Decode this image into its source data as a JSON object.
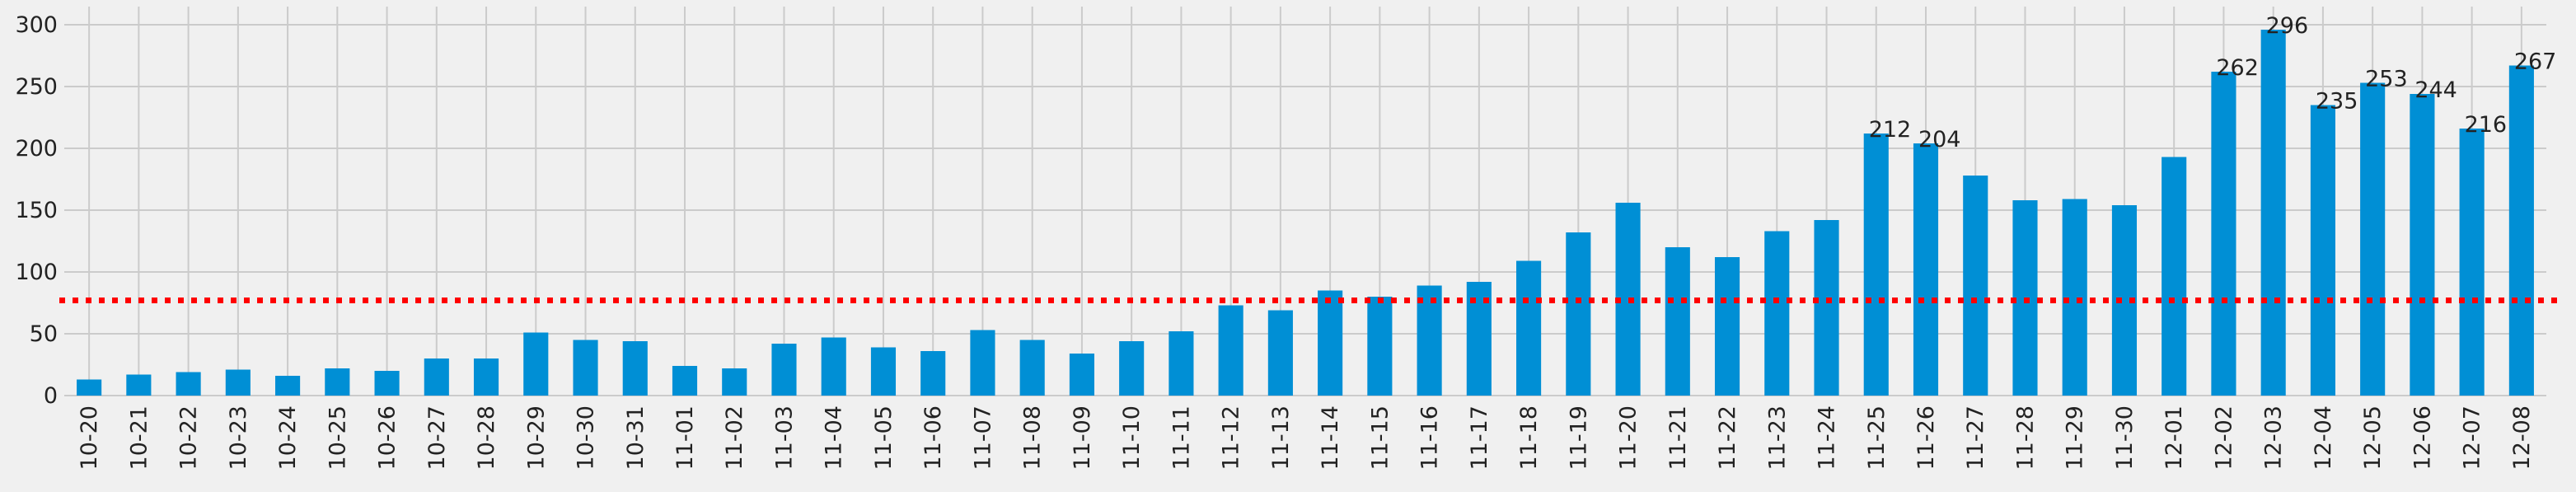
{
  "chart_data": {
    "type": "bar",
    "title": "",
    "xlabel": "",
    "ylabel": "",
    "categories": [
      "10-20",
      "10-21",
      "10-22",
      "10-23",
      "10-24",
      "10-25",
      "10-26",
      "10-27",
      "10-28",
      "10-29",
      "10-30",
      "10-31",
      "11-01",
      "11-02",
      "11-03",
      "11-04",
      "11-05",
      "11-06",
      "11-07",
      "11-08",
      "11-09",
      "11-10",
      "11-11",
      "11-12",
      "11-13",
      "11-14",
      "11-15",
      "11-16",
      "11-17",
      "11-18",
      "11-19",
      "11-20",
      "11-21",
      "11-22",
      "11-23",
      "11-24",
      "11-25",
      "11-26",
      "11-27",
      "11-28",
      "11-29",
      "11-30",
      "12-01",
      "12-02",
      "12-03",
      "12-04",
      "12-05",
      "12-06",
      "12-07",
      "12-08"
    ],
    "values": [
      13,
      17,
      19,
      21,
      16,
      22,
      20,
      30,
      30,
      51,
      45,
      44,
      24,
      22,
      42,
      47,
      39,
      36,
      53,
      45,
      34,
      44,
      52,
      73,
      69,
      85,
      80,
      89,
      92,
      109,
      132,
      156,
      120,
      112,
      133,
      142,
      212,
      204,
      178,
      158,
      159,
      154,
      193,
      262,
      296,
      235,
      253,
      244,
      216,
      267
    ],
    "labeled_values": [
      {
        "category": "11-25",
        "label": "212"
      },
      {
        "category": "11-26",
        "label": "204"
      },
      {
        "category": "12-02",
        "label": "262"
      },
      {
        "category": "12-03",
        "label": "296"
      },
      {
        "category": "12-04",
        "label": "235"
      },
      {
        "category": "12-05",
        "label": "253"
      },
      {
        "category": "12-06",
        "label": "244"
      },
      {
        "category": "12-07",
        "label": "216"
      },
      {
        "category": "12-08",
        "label": "267"
      }
    ],
    "yticks": [
      "0",
      "50",
      "100",
      "150",
      "200",
      "250",
      "300"
    ],
    "ylim": [
      0,
      305
    ],
    "reference_line": {
      "value": 77,
      "style": "dotted",
      "color": "#ff0000"
    },
    "bar_color": "#008fd5",
    "grid": true,
    "legend": "none"
  }
}
